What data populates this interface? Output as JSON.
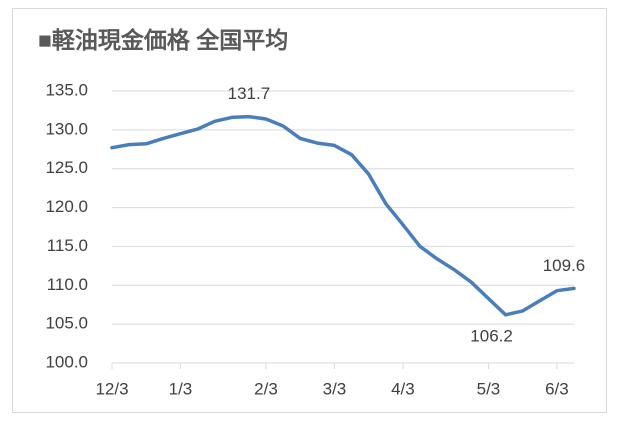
{
  "chart_data": {
    "type": "line",
    "title": "■軽油現金価格 全国平均",
    "categories": [
      "12/3",
      null,
      null,
      null,
      "1/3",
      null,
      null,
      null,
      null,
      "2/3",
      null,
      null,
      null,
      "3/3",
      null,
      null,
      null,
      "4/3",
      null,
      null,
      null,
      null,
      "5/3",
      null,
      null,
      null,
      "6/3",
      null
    ],
    "series": [
      {
        "color": "#4a7ebb",
        "values": [
          127.7,
          128.1,
          128.2,
          128.9,
          129.5,
          130.1,
          131.1,
          131.6,
          131.7,
          131.4,
          130.5,
          128.9,
          128.3,
          128.0,
          126.8,
          124.3,
          120.5,
          117.8,
          115.0,
          113.4,
          112.0,
          110.4,
          108.3,
          106.2,
          106.7,
          108.0,
          109.3,
          109.6
        ],
        "value_labels": [
          null,
          null,
          null,
          null,
          null,
          null,
          null,
          null,
          "131.7",
          null,
          null,
          null,
          null,
          null,
          null,
          null,
          null,
          null,
          null,
          null,
          null,
          null,
          null,
          "106.2",
          null,
          null,
          null,
          "109.6"
        ]
      }
    ],
    "ylim": [
      100,
      135
    ],
    "yticks": [
      {
        "value": 100,
        "label": "100.0"
      },
      {
        "value": 105,
        "label": "105.0"
      },
      {
        "value": 110,
        "label": "110.0"
      },
      {
        "value": 115,
        "label": "115.0"
      },
      {
        "value": 120,
        "label": "120.0"
      },
      {
        "value": 125,
        "label": "125.0"
      },
      {
        "value": 130,
        "label": "130.0"
      },
      {
        "value": 135,
        "label": "135.0"
      }
    ],
    "grid": true
  }
}
